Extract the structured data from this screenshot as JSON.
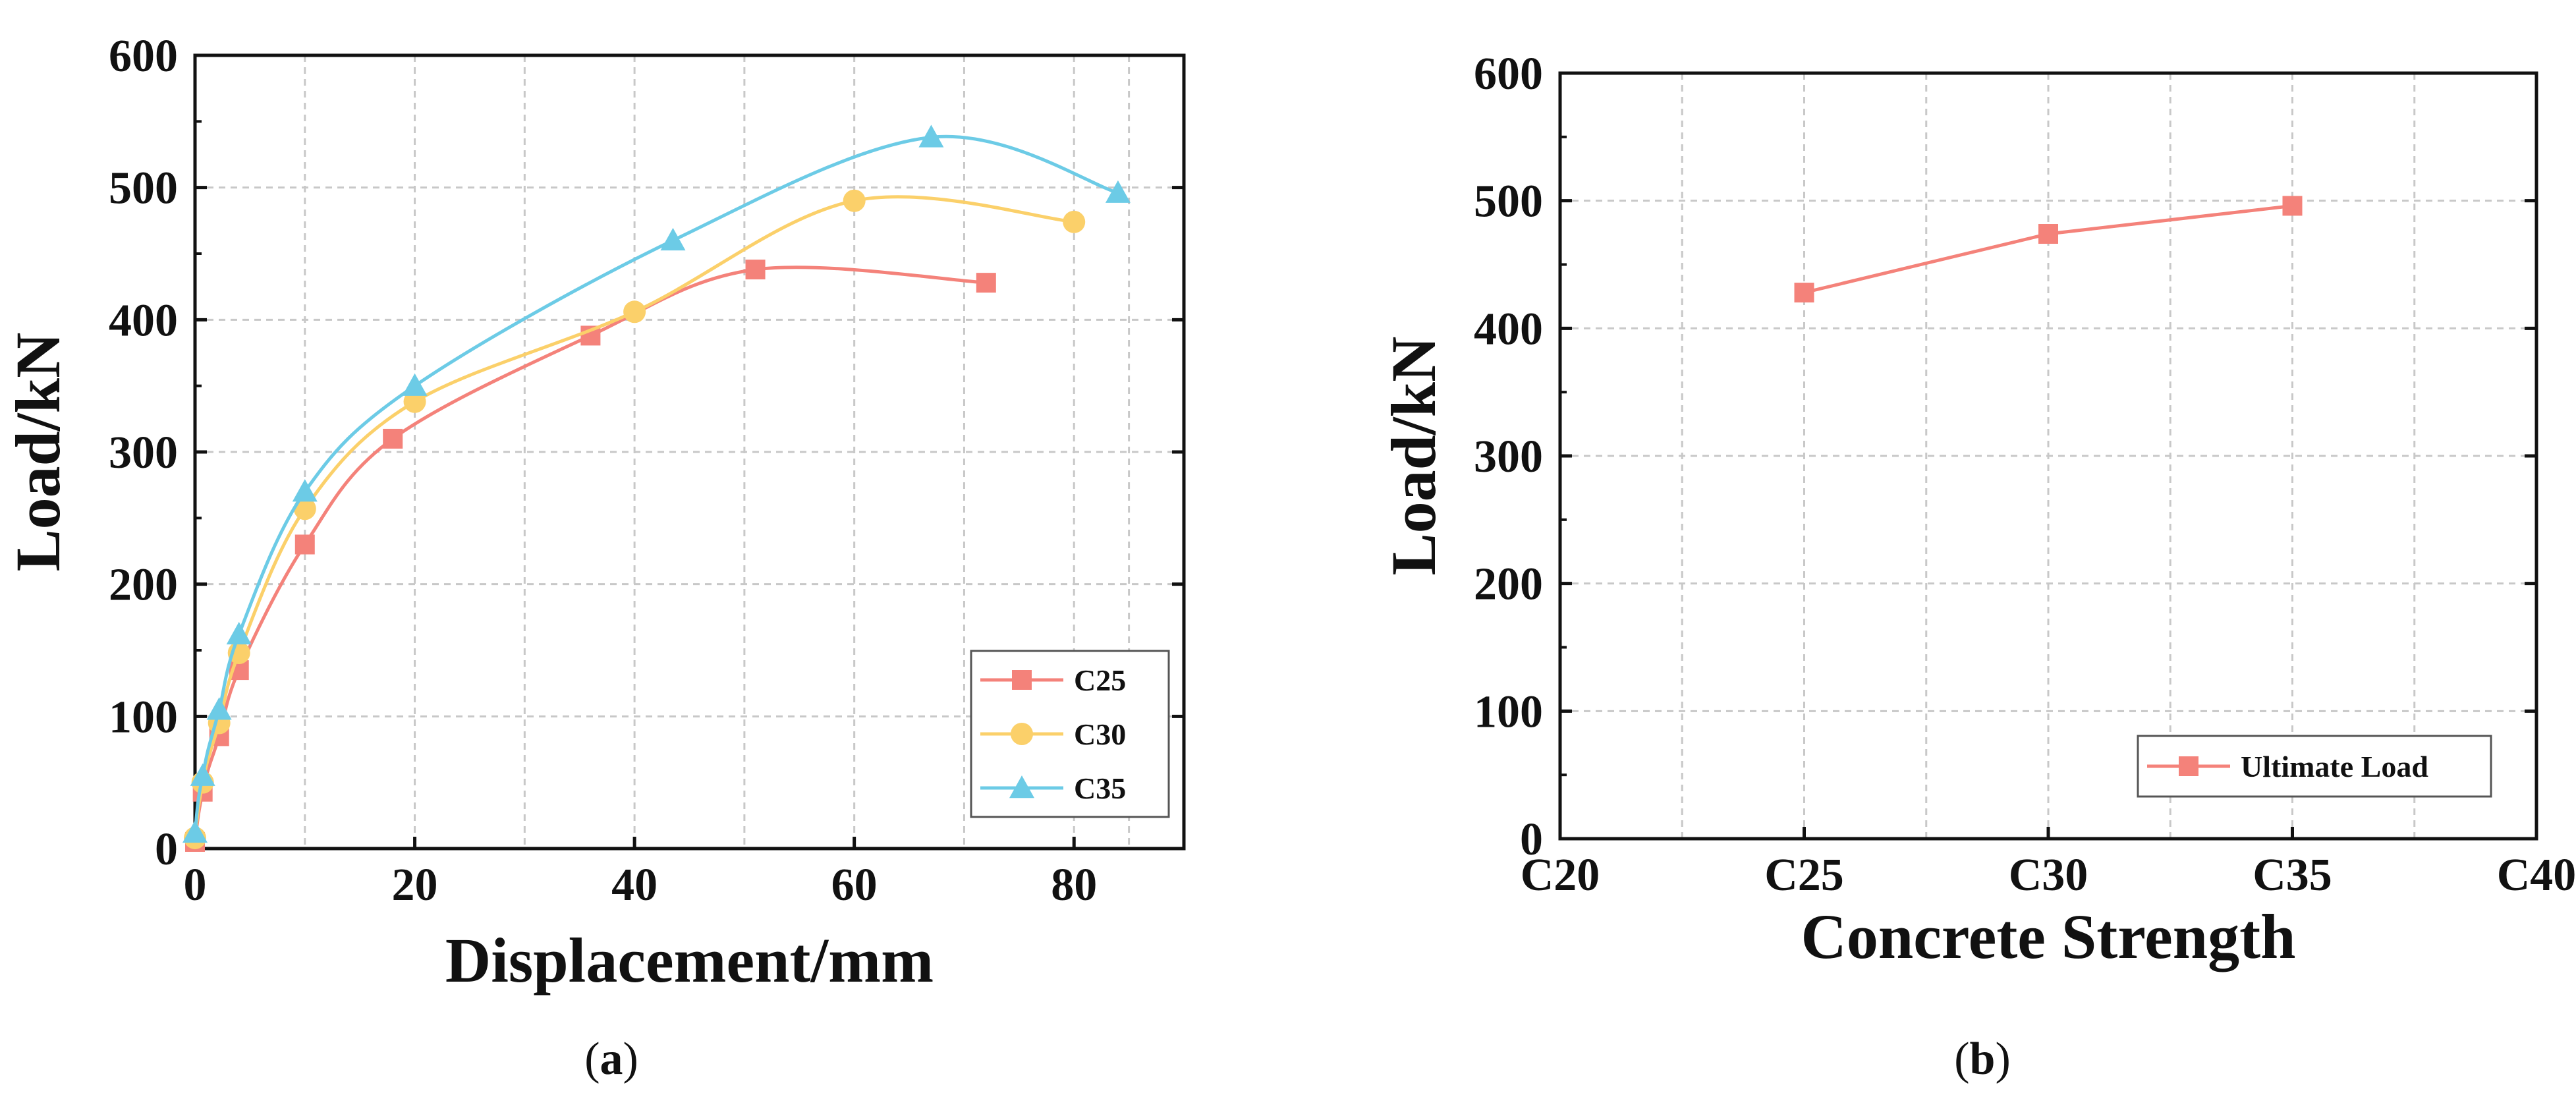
{
  "colors": {
    "c25": "#f4827a",
    "c30": "#fbd06a",
    "c35": "#6ccbe6",
    "ultimate": "#f4827a",
    "grid": "#c8c8c8",
    "axis": "#111111"
  },
  "chart_data": [
    {
      "type": "line",
      "panel": "(a)",
      "panel_letter": "a",
      "xlabel": "Displacement/mm",
      "ylabel": "Load/kN",
      "xlim": [
        0,
        90
      ],
      "ylim": [
        0,
        600
      ],
      "xticks": [
        0,
        20,
        40,
        60,
        80
      ],
      "yticks": [
        0,
        100,
        200,
        300,
        400,
        500,
        600
      ],
      "grid": true,
      "legend_position": "bottom-right",
      "series": [
        {
          "name": "C25",
          "marker": "square",
          "x": [
            0,
            0.3,
            0.7,
            1.2,
            2.2,
            4,
            10,
            18,
            36,
            51,
            72
          ],
          "y": [
            5,
            25,
            43,
            60,
            85,
            135,
            230,
            310,
            388,
            438,
            428
          ]
        },
        {
          "name": "C30",
          "marker": "circle",
          "x": [
            0,
            0.3,
            0.7,
            1.2,
            2.2,
            4,
            10,
            20,
            40,
            60,
            80
          ],
          "y": [
            8,
            30,
            50,
            68,
            95,
            148,
            257,
            338,
            406,
            490,
            474
          ]
        },
        {
          "name": "C35",
          "marker": "triangle",
          "x": [
            0,
            0.3,
            0.7,
            1.2,
            2.2,
            4,
            10,
            20,
            43.5,
            67,
            84
          ],
          "y": [
            12,
            37,
            55,
            75,
            105,
            162,
            270,
            350,
            460,
            538,
            496
          ]
        }
      ]
    },
    {
      "type": "line",
      "panel": "(b)",
      "panel_letter": "b",
      "xlabel": "Concrete Strength",
      "ylabel": "Load/kN",
      "categories": [
        "C20",
        "C25",
        "C30",
        "C35",
        "C40"
      ],
      "ylim": [
        0,
        600
      ],
      "yticks": [
        0,
        100,
        200,
        300,
        400,
        500,
        600
      ],
      "grid": true,
      "legend_position": "bottom-right",
      "series": [
        {
          "name": "Ultimate Load",
          "marker": "square",
          "x": [
            "C25",
            "C30",
            "C35"
          ],
          "y": [
            428,
            474,
            496
          ]
        }
      ]
    }
  ]
}
